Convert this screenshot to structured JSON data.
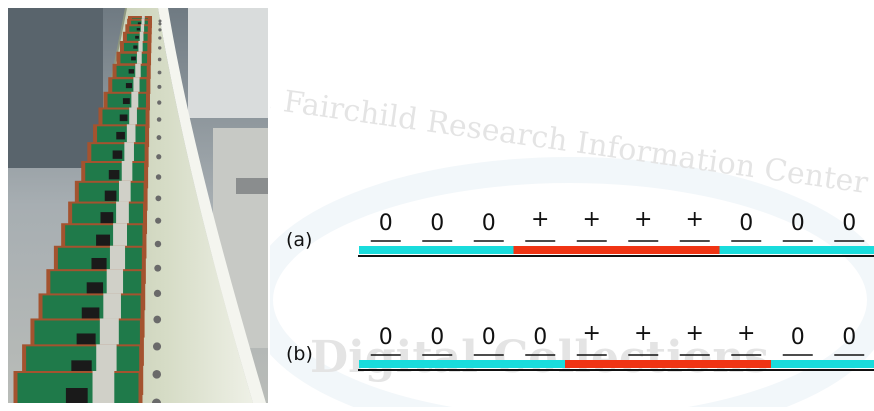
{
  "watermark": {
    "line1": "S. Fairchild Research Information Center",
    "line2": "Digital Collections"
  },
  "colors": {
    "cyan": "#19dcdc",
    "red": "#f03414",
    "line": "#111111",
    "board": "#1f7a4a",
    "copper": "#a4532f"
  },
  "diagram": {
    "rows": [
      {
        "label": "(a)",
        "symbols": [
          "0",
          "0",
          "0",
          "+",
          "+",
          "+",
          "+",
          "0",
          "0",
          "0"
        ],
        "segments": [
          "cyan",
          "cyan",
          "cyan",
          "red",
          "red",
          "red",
          "red",
          "cyan",
          "cyan",
          "cyan"
        ]
      },
      {
        "label": "(b)",
        "symbols": [
          "0",
          "0",
          "0",
          "0",
          "+",
          "+",
          "+",
          "+",
          "0",
          "0"
        ],
        "segments": [
          "cyan",
          "cyan",
          "cyan",
          "cyan",
          "red",
          "red",
          "red",
          "red",
          "cyan",
          "cyan"
        ]
      }
    ]
  }
}
